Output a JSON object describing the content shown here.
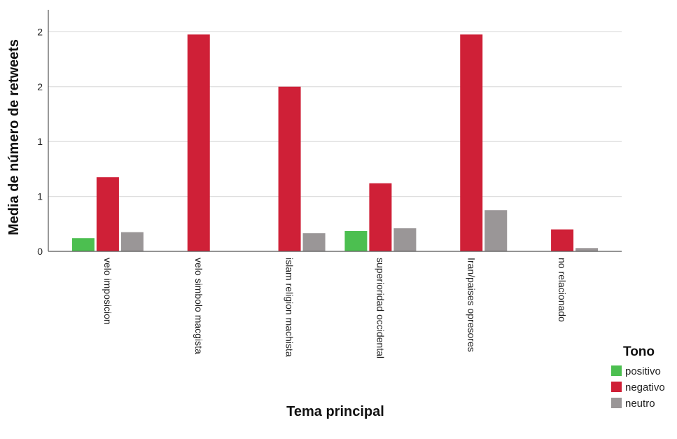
{
  "chart_data": {
    "type": "bar",
    "title": "",
    "xlabel": "Tema principal",
    "ylabel": "Media de número de retweets",
    "categories": [
      "velo imposicion",
      "velo simbolo macgista",
      "islam religion machista",
      "superioridad occidental",
      "Iran/paises opresores",
      "no relacionado"
    ],
    "y_tick_values": [
      0,
      0.5,
      1,
      1.5,
      2
    ],
    "y_tick_labels": [
      "0",
      "1",
      "1",
      "2",
      "2"
    ],
    "ylim": [
      0,
      2.2
    ],
    "grid": true,
    "legend": {
      "title": "Tono",
      "position": "right"
    },
    "series": [
      {
        "name": "positivo",
        "color": "#4cbf50",
        "values": [
          0.12,
          null,
          null,
          0.185,
          null,
          null
        ]
      },
      {
        "name": "negativo",
        "color": "#cf2037",
        "values": [
          0.675,
          1.975,
          1.5,
          0.62,
          1.975,
          0.2
        ]
      },
      {
        "name": "neutro",
        "color": "#9a9697",
        "values": [
          0.175,
          null,
          0.165,
          0.21,
          0.375,
          0.03
        ]
      }
    ]
  }
}
